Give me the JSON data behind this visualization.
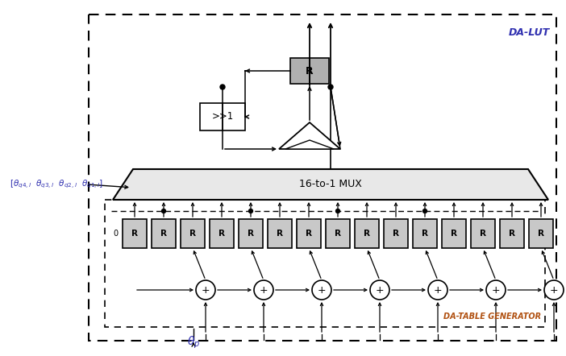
{
  "bg_color": "#ffffff",
  "da_lut_label": "DA-LUT",
  "da_table_label": "DA-TABLE GENERATOR",
  "mux_label": "16-to-1 MUX",
  "shift_label": ">>1",
  "reg_label": "R",
  "colors": {
    "reg_fill": "#c8c8c8",
    "reg_border": "#000000",
    "mux_fill": "#e8e8e8",
    "da_lut_text": "#3030b0",
    "da_table_text": "#b05010",
    "input_text": "#3030b0",
    "theta_p_text": "#3030b0",
    "shift_fill": "#ffffff",
    "r_top_fill": "#b0b0b0"
  },
  "n_reg": 15,
  "n_adder": 7
}
